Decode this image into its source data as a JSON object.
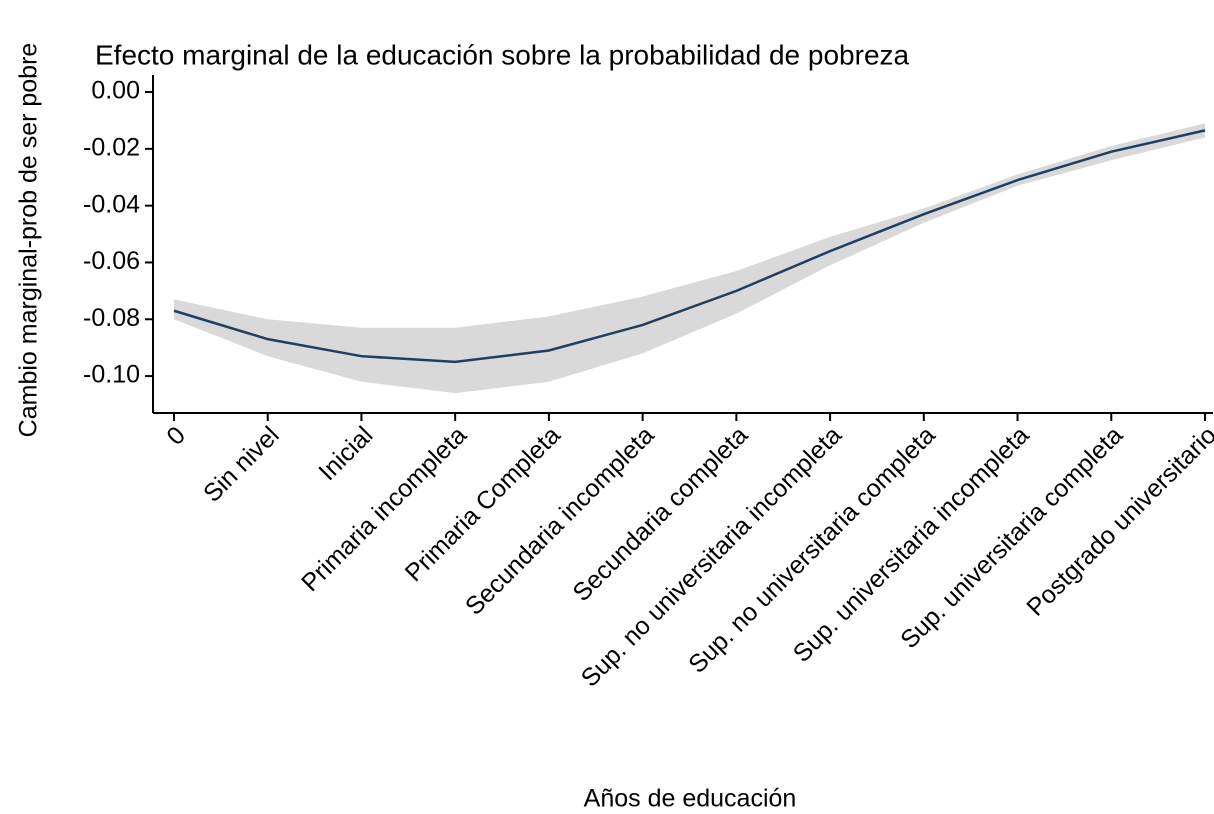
{
  "chart_data": {
    "type": "line",
    "title": "Efecto marginal de la educación sobre la probabilidad de pobreza",
    "x_label": "Años de educación",
    "y_label": "Cambio marginal-prob de ser pobre",
    "categories": [
      "0",
      "Sin nivel",
      "Inicial",
      "Primaria incompleta",
      "Primaria Completa",
      "Secundaria incompleta",
      "Secundaria completa",
      "Sup. no universitaria incompleta",
      "Sup. no universitaria completa",
      "Sup. universitaria incompleta",
      "Sup. universitaria completa",
      "Postgrado universitario"
    ],
    "values": [
      -0.077,
      -0.087,
      -0.093,
      -0.095,
      -0.091,
      -0.082,
      -0.07,
      -0.056,
      -0.043,
      -0.031,
      -0.021,
      -0.0135
    ],
    "upper": [
      -0.073,
      -0.08,
      -0.083,
      -0.083,
      -0.079,
      -0.072,
      -0.063,
      -0.051,
      -0.041,
      -0.029,
      -0.019,
      -0.011
    ],
    "lower": [
      -0.08,
      -0.093,
      -0.102,
      -0.106,
      -0.102,
      -0.092,
      -0.078,
      -0.061,
      -0.046,
      -0.033,
      -0.024,
      -0.016
    ],
    "color": "#1f3f60",
    "band_color": "#d9d9d9",
    "ylim": [
      -0.113,
      0.006
    ],
    "yticks": [
      {
        "value": 0,
        "label": "0.00"
      },
      {
        "value": -0.02,
        "label": "-0.02"
      },
      {
        "value": -0.04,
        "label": "-0.04"
      },
      {
        "value": -0.06,
        "label": "-0.06"
      },
      {
        "value": -0.08,
        "label": "-0.08"
      },
      {
        "value": -0.1,
        "label": "-0.10"
      }
    ]
  }
}
